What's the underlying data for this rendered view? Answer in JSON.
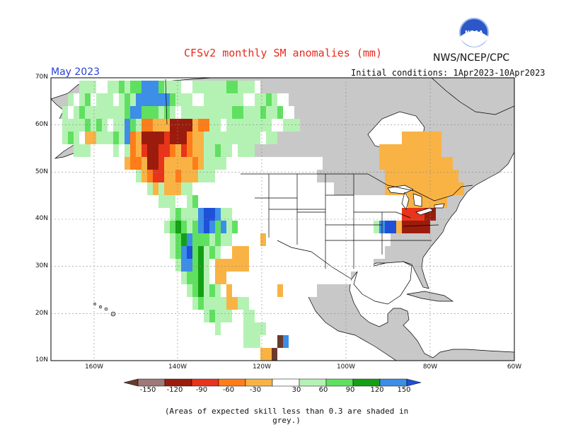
{
  "title": "CFSv2 monthly SM anomalies (mm)",
  "target_month": "May 2023",
  "initial_conditions": "Initial conditions: 1Apr2023-10Apr2023",
  "agency": "NWS/NCEP/CPC",
  "logo": {
    "text": "NOAA",
    "icon": "noaa-logo"
  },
  "footer_note": "(Areas of expected skill less than 0.3 are shaded in grey.)",
  "lat_labels": [
    "70N",
    "60N",
    "50N",
    "40N",
    "30N",
    "20N",
    "10N"
  ],
  "lon_labels": [
    "160W",
    "140W",
    "120W",
    "100W",
    "80W",
    "60W"
  ],
  "colorbar": {
    "tick_labels": [
      "-150",
      "-120",
      "-90",
      "-60",
      "-30",
      "30",
      "60",
      "90",
      "120",
      "150"
    ],
    "colors": [
      "#6b3a2a",
      "#a07878",
      "#9b1c0c",
      "#e8341a",
      "#ff7d18",
      "#f9b345",
      "#ffffff",
      "#b4f2b4",
      "#60e060",
      "#14a014",
      "#3c8ee6",
      "#1e50d8"
    ]
  },
  "colors": {
    "land_grey": "#c8c8c8",
    "ocean": "#ffffff",
    "title_red": "#e8291c",
    "month_blue": "#2a40d8"
  }
}
